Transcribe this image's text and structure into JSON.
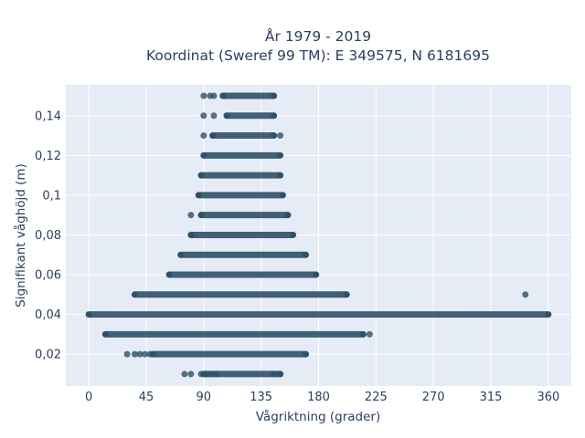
{
  "chart_data": {
    "type": "scatter",
    "title_line1": "År 1979 - 2019",
    "title_line2": "Koordinat (Sweref 99 TM): E 349575, N 6181695",
    "xlabel": "Vågriktning (grader)",
    "ylabel": "Signifikant våghöjd (m)",
    "xlim": [
      -18,
      378
    ],
    "ylim": [
      0.004,
      0.1555
    ],
    "x_ticks": [
      0,
      45,
      90,
      135,
      180,
      225,
      270,
      315,
      360
    ],
    "x_tick_labels": [
      "0",
      "45",
      "90",
      "135",
      "180",
      "225",
      "270",
      "315",
      "360"
    ],
    "y_ticks": [
      0.02,
      0.04,
      0.06,
      0.08,
      0.1,
      0.12,
      0.14
    ],
    "y_tick_labels": [
      "0,02",
      "0,04",
      "0,06",
      "0,08",
      "0,1",
      "0,12",
      "0,14"
    ],
    "grid": true,
    "background_color": "#e5ecf6",
    "marker_color": "#2f5068",
    "bands": [
      {
        "y": 0.01,
        "x_min": 90,
        "x_max": 150,
        "outliers": [
          75,
          80,
          88,
          92,
          96,
          100,
          145,
          150
        ]
      },
      {
        "y": 0.02,
        "x_min": 50,
        "x_max": 170,
        "outliers": [
          30,
          36,
          40,
          44,
          48
        ]
      },
      {
        "y": 0.03,
        "x_min": 13,
        "x_max": 215,
        "outliers": [
          220
        ]
      },
      {
        "y": 0.04,
        "x_min": 0,
        "x_max": 360,
        "outliers": []
      },
      {
        "y": 0.05,
        "x_min": 36,
        "x_max": 202,
        "outliers": [
          342
        ]
      },
      {
        "y": 0.06,
        "x_min": 63,
        "x_max": 178,
        "outliers": []
      },
      {
        "y": 0.07,
        "x_min": 72,
        "x_max": 170,
        "outliers": []
      },
      {
        "y": 0.08,
        "x_min": 80,
        "x_max": 160,
        "outliers": []
      },
      {
        "y": 0.09,
        "x_min": 88,
        "x_max": 156,
        "outliers": [
          80
        ]
      },
      {
        "y": 0.1,
        "x_min": 86,
        "x_max": 152,
        "outliers": []
      },
      {
        "y": 0.11,
        "x_min": 88,
        "x_max": 150,
        "outliers": []
      },
      {
        "y": 0.12,
        "x_min": 90,
        "x_max": 150,
        "outliers": []
      },
      {
        "y": 0.13,
        "x_min": 97,
        "x_max": 145,
        "outliers": [
          90,
          150
        ]
      },
      {
        "y": 0.14,
        "x_min": 108,
        "x_max": 145,
        "outliers": [
          90,
          98
        ]
      },
      {
        "y": 0.15,
        "x_min": 105,
        "x_max": 145,
        "outliers": [
          90,
          95,
          98
        ]
      }
    ]
  }
}
